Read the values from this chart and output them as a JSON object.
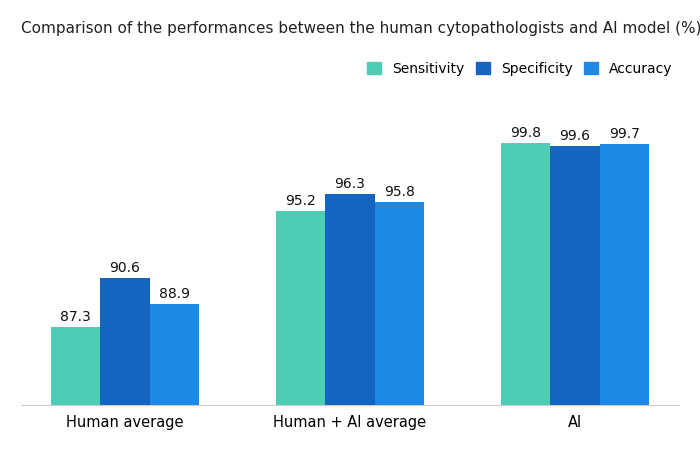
{
  "title": "Comparison of the performances between the human cytopathologists and AI model (%)",
  "categories": [
    "Human average",
    "Human + AI average",
    "AI"
  ],
  "series": {
    "Sensitivity": [
      87.3,
      95.2,
      99.8
    ],
    "Specificity": [
      90.6,
      96.3,
      99.6
    ],
    "Accuracy": [
      88.9,
      95.8,
      99.7
    ]
  },
  "colors": {
    "Sensitivity": "#4ECDB4",
    "Specificity": "#1565C0",
    "Accuracy": "#1E88E5"
  },
  "bar_width": 0.22,
  "ylim": [
    82,
    103
  ],
  "background_color": "#ffffff",
  "title_fontsize": 11,
  "tick_fontsize": 10.5,
  "legend_fontsize": 10,
  "value_fontsize": 10
}
